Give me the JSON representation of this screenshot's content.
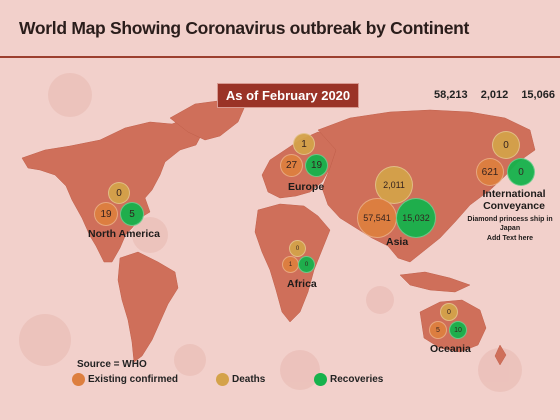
{
  "title": "World Map Showing Coronavirus outbreak by Continent",
  "date_badge": "As of February 2020",
  "totals": {
    "confirmed": "58,213",
    "deaths": "2,012",
    "recovered": "15,066"
  },
  "colors": {
    "background": "#f2d0cb",
    "land": "#cf6f5a",
    "rule": "#9c3f2f",
    "badge": "#9a3327",
    "confirmed": "#dd7f3f",
    "deaths": "#d4a24a",
    "recovered": "#16b24c"
  },
  "regions": {
    "north_america": {
      "label": "North America",
      "deaths": "0",
      "confirmed": "19",
      "recovered": "5"
    },
    "europe": {
      "label": "Europe",
      "deaths": "1",
      "confirmed": "27",
      "recovered": "19"
    },
    "asia": {
      "label": "Asia",
      "deaths": "2,011",
      "confirmed": "57,541",
      "recovered": "15,032"
    },
    "africa": {
      "label": "Africa",
      "deaths": "0",
      "confirmed": "1",
      "recovered": "0"
    },
    "oceania": {
      "label": "Oceania",
      "deaths": "0",
      "confirmed": "5",
      "recovered": "10"
    },
    "international": {
      "label_line1": "International",
      "label_line2": "Conveyance",
      "note_line1": "Diamond princess ship in",
      "note_line2": "Japan",
      "note_line3": "Add Text here",
      "deaths": "0",
      "confirmed": "621",
      "recovered": "0"
    }
  },
  "source": "Source = WHO",
  "legend": {
    "confirmed": "Existing confirmed",
    "deaths": "Deaths",
    "recovered": "Recoveries"
  }
}
